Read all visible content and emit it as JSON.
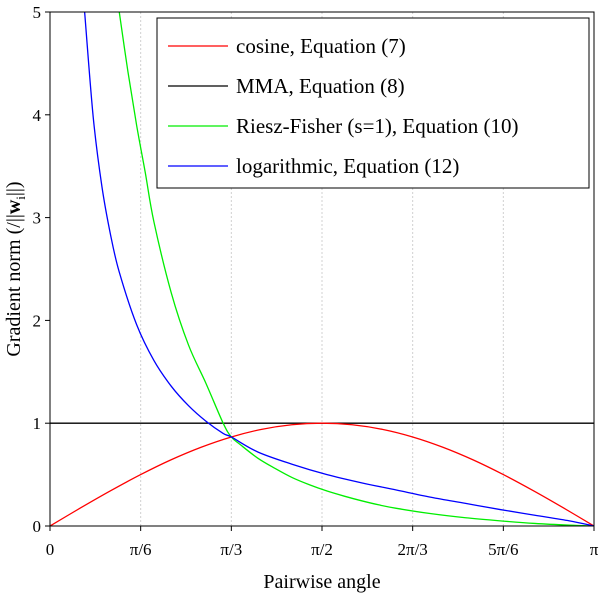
{
  "chart_data": {
    "type": "line",
    "title": "",
    "xlabel": "Pairwise angle",
    "ylabel": "Gradient norm (/||w_i||)",
    "ylabel_parts": {
      "prefix": "Gradient norm (/||",
      "vector": "w",
      "subscript": "i",
      "suffix": "||)"
    },
    "xlim": [
      0,
      3.14159
    ],
    "ylim": [
      0,
      5
    ],
    "grid": {
      "x": true,
      "y": false
    },
    "legend_position": "top-right",
    "x_ticks": [
      {
        "value": 0,
        "label": "0"
      },
      {
        "value": 0.5236,
        "label": "π/6"
      },
      {
        "value": 1.0472,
        "label": "π/3"
      },
      {
        "value": 1.5708,
        "label": "π/2"
      },
      {
        "value": 2.0944,
        "label": "2π/3"
      },
      {
        "value": 2.618,
        "label": "5π/6"
      },
      {
        "value": 3.1416,
        "label": "π"
      }
    ],
    "y_ticks": [
      {
        "value": 0,
        "label": "0"
      },
      {
        "value": 1,
        "label": "1"
      },
      {
        "value": 2,
        "label": "2"
      },
      {
        "value": 3,
        "label": "3"
      },
      {
        "value": 4,
        "label": "4"
      },
      {
        "value": 5,
        "label": "5"
      }
    ],
    "series": [
      {
        "name": "cosine, Equation (7)",
        "color": "#ff0000",
        "x": [
          0,
          0.1745,
          0.3491,
          0.5236,
          0.6981,
          0.8727,
          1.0472,
          1.2217,
          1.3963,
          1.5708,
          1.7453,
          1.9199,
          2.0944,
          2.2689,
          2.4435,
          2.618,
          2.7925,
          2.9671,
          3.1416
        ],
        "y": [
          0,
          0.174,
          0.342,
          0.5,
          0.643,
          0.766,
          0.866,
          0.94,
          0.985,
          1.0,
          0.985,
          0.94,
          0.866,
          0.766,
          0.643,
          0.5,
          0.342,
          0.174,
          0
        ]
      },
      {
        "name": "MMA, Equation (8)",
        "color": "#000000",
        "x": [
          0,
          3.1416
        ],
        "y": [
          1,
          1
        ]
      },
      {
        "name": "Riesz-Fisher (s=1), Equation (10)",
        "color": "#00ee00",
        "x": [
          0.4,
          0.45,
          0.5,
          0.55,
          0.6,
          0.7,
          0.8,
          0.9,
          1.0,
          1.0472,
          1.1,
          1.2,
          1.3,
          1.4,
          1.5,
          1.6,
          1.7,
          1.8,
          1.9,
          2.0,
          2.2,
          2.4,
          2.6,
          2.8,
          3.0,
          3.1416
        ],
        "y": [
          5.0,
          4.42,
          3.9,
          3.44,
          2.96,
          2.27,
          1.76,
          1.39,
          1.0,
          0.866,
          0.79,
          0.66,
          0.56,
          0.47,
          0.4,
          0.34,
          0.29,
          0.245,
          0.205,
          0.172,
          0.12,
          0.08,
          0.05,
          0.025,
          0.008,
          0
        ]
      },
      {
        "name": "logarithmic, Equation (12)",
        "color": "#0000ff",
        "x": [
          0.2,
          0.25,
          0.3,
          0.35,
          0.4,
          0.5,
          0.6,
          0.7,
          0.8,
          0.9,
          1.0,
          1.0472,
          1.2,
          1.4,
          1.6,
          1.8,
          2.0,
          2.2,
          2.4,
          2.6,
          2.8,
          3.0,
          3.1416
        ],
        "y": [
          5.0,
          3.97,
          3.3,
          2.83,
          2.47,
          1.96,
          1.61,
          1.36,
          1.17,
          1.02,
          0.9,
          0.866,
          0.72,
          0.6,
          0.5,
          0.42,
          0.35,
          0.28,
          0.22,
          0.16,
          0.105,
          0.05,
          0
        ]
      }
    ]
  }
}
